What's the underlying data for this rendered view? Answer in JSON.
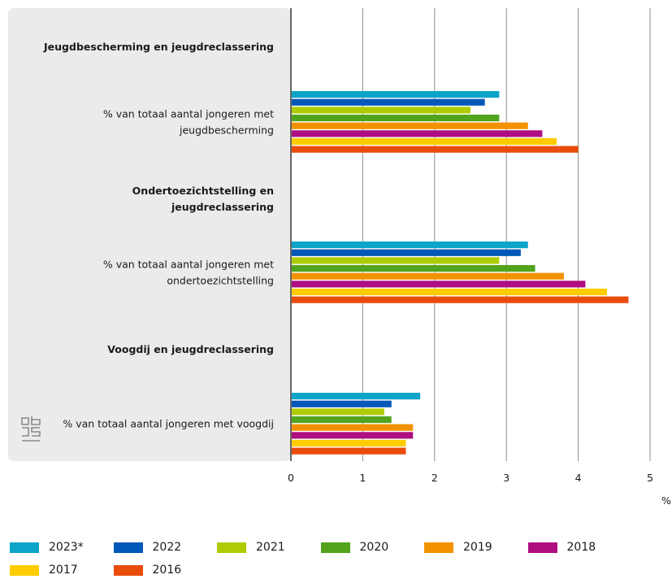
{
  "chart_data": {
    "type": "bar",
    "orientation": "horizontal",
    "unit_label": "%",
    "xlim": [
      0,
      5
    ],
    "x_ticks": [
      "0",
      "1",
      "2",
      "3",
      "4",
      "5"
    ],
    "grid": true,
    "legend_position": "bottom",
    "rows": [
      {
        "kind": "heading",
        "label": [
          "Jeugdbescherming en jeugdreclassering"
        ]
      },
      {
        "kind": "data",
        "label": [
          "% van totaal aantal jongeren met",
          "jeugdbescherming"
        ],
        "values": [
          2.9,
          2.7,
          2.5,
          2.9,
          3.3,
          3.5,
          3.7,
          4.0
        ]
      },
      {
        "kind": "heading",
        "label": [
          "Ondertoezichtstelling en",
          "jeugdreclassering"
        ]
      },
      {
        "kind": "data",
        "label": [
          "% van totaal aantal jongeren met",
          "ondertoezichtstelling"
        ],
        "values": [
          3.3,
          3.2,
          2.9,
          3.4,
          3.8,
          4.1,
          4.4,
          4.7
        ]
      },
      {
        "kind": "heading",
        "label": [
          "Voogdij en jeugdreclassering"
        ]
      },
      {
        "kind": "data",
        "label": [
          "% van totaal aantal jongeren met voogdij"
        ],
        "values": [
          1.8,
          1.4,
          1.3,
          1.4,
          1.7,
          1.7,
          1.6,
          1.6
        ]
      }
    ],
    "series": [
      {
        "name": "2023*",
        "color": "#0ca4c9"
      },
      {
        "name": "2022",
        "color": "#0058b8"
      },
      {
        "name": "2021",
        "color": "#afcb05"
      },
      {
        "name": "2020",
        "color": "#53a31d"
      },
      {
        "name": "2019",
        "color": "#f39200"
      },
      {
        "name": "2018",
        "color": "#af0e80"
      },
      {
        "name": "2017",
        "color": "#ffcc00"
      },
      {
        "name": "2016",
        "color": "#e94c0a"
      }
    ]
  },
  "colors": {
    "panel": "#ebebeb",
    "grid": "#8c8c8c",
    "axis": "#666666"
  },
  "logo_icon": "cbs-logo-icon"
}
